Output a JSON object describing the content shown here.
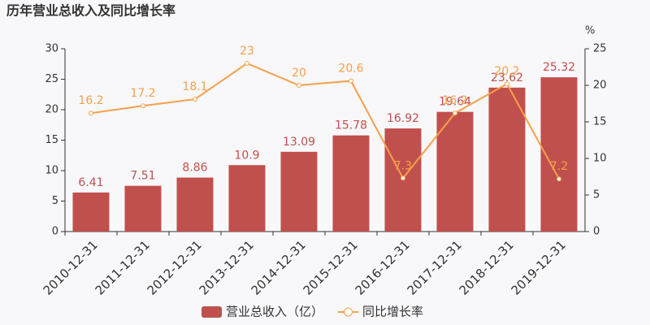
{
  "chart_data": {
    "type": "bar",
    "title": "历年营业总收入及同比增长率",
    "categories": [
      "2010-12-31",
      "2011-12-31",
      "2012-12-31",
      "2013-12-31",
      "2014-12-31",
      "2015-12-31",
      "2016-12-31",
      "2017-12-31",
      "2018-12-31",
      "2019-12-31"
    ],
    "series": [
      {
        "name": "营业总收入（亿）",
        "type": "bar",
        "color": "#c0504d",
        "values": [
          6.41,
          7.51,
          8.86,
          10.9,
          13.09,
          15.78,
          16.92,
          19.64,
          23.62,
          25.32
        ]
      },
      {
        "name": "同比增长率",
        "type": "line",
        "axis": "y2",
        "color": "#f5a04b",
        "values": [
          16.2,
          17.2,
          18.1,
          23,
          20,
          20.6,
          7.3,
          16.2,
          20.2,
          7.2
        ]
      }
    ],
    "ylim": [
      0,
      30
    ],
    "yticks": [
      0,
      5,
      10,
      15,
      20,
      25,
      30
    ],
    "y2lim": [
      0,
      25
    ],
    "y2ticks": [
      0,
      5,
      10,
      15,
      20,
      25
    ],
    "y2_unit": "%",
    "legend": "bottom"
  }
}
